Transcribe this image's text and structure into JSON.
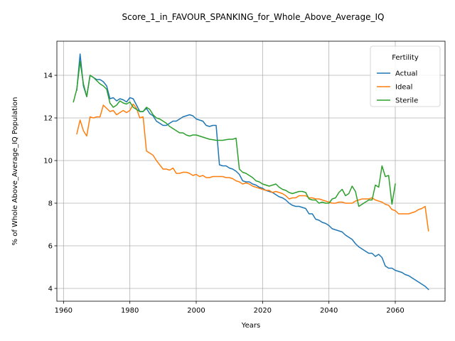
{
  "chart_data": {
    "type": "line",
    "title": "Score_1_in_FAVOUR_SPANKING_for_Whole_Above_Average_IQ",
    "xlabel": "Years",
    "ylabel": "% of Whole Above_Average_IQ Population",
    "xlim": [
      1958,
      2075
    ],
    "ylim": [
      3.4,
      15.6
    ],
    "xticks": [
      1960,
      1980,
      2000,
      2020,
      2040,
      2060
    ],
    "yticks": [
      4,
      6,
      8,
      10,
      12,
      14
    ],
    "grid": true,
    "legend": {
      "title": "Fertility",
      "position": "top-right"
    },
    "series": [
      {
        "name": "Actual",
        "color": "#1f77b4",
        "points": [
          [
            1964,
            13.3
          ],
          [
            1965,
            15.0
          ],
          [
            1966,
            13.5
          ],
          [
            1967,
            13.0
          ],
          [
            1968,
            14.0
          ],
          [
            1969,
            13.9
          ],
          [
            1970,
            13.8
          ],
          [
            1971,
            13.8
          ],
          [
            1972,
            13.7
          ],
          [
            1973,
            13.5
          ],
          [
            1974,
            12.9
          ],
          [
            1975,
            12.95
          ],
          [
            1976,
            12.8
          ],
          [
            1977,
            12.9
          ],
          [
            1978,
            12.85
          ],
          [
            1979,
            12.75
          ],
          [
            1980,
            12.95
          ],
          [
            1981,
            12.9
          ],
          [
            1982,
            12.6
          ],
          [
            1983,
            12.3
          ],
          [
            1984,
            12.3
          ],
          [
            1985,
            12.45
          ],
          [
            1986,
            12.2
          ],
          [
            1987,
            12.1
          ],
          [
            1988,
            11.85
          ],
          [
            1989,
            11.75
          ],
          [
            1990,
            11.65
          ],
          [
            1991,
            11.65
          ],
          [
            1992,
            11.75
          ],
          [
            1993,
            11.85
          ],
          [
            1994,
            11.85
          ],
          [
            1995,
            11.95
          ],
          [
            1996,
            12.05
          ],
          [
            1997,
            12.1
          ],
          [
            1998,
            12.15
          ],
          [
            1999,
            12.1
          ],
          [
            2000,
            11.95
          ],
          [
            2001,
            11.9
          ],
          [
            2002,
            11.85
          ],
          [
            2003,
            11.65
          ],
          [
            2004,
            11.6
          ],
          [
            2005,
            11.65
          ],
          [
            2006,
            11.65
          ],
          [
            2007,
            9.8
          ],
          [
            2008,
            9.75
          ],
          [
            2009,
            9.75
          ],
          [
            2010,
            9.65
          ],
          [
            2011,
            9.6
          ],
          [
            2012,
            9.5
          ],
          [
            2013,
            9.35
          ],
          [
            2014,
            9.05
          ],
          [
            2015,
            9.0
          ],
          [
            2016,
            9.0
          ],
          [
            2017,
            8.9
          ],
          [
            2018,
            8.85
          ],
          [
            2019,
            8.75
          ],
          [
            2020,
            8.7
          ],
          [
            2021,
            8.6
          ],
          [
            2022,
            8.55
          ],
          [
            2023,
            8.5
          ],
          [
            2024,
            8.4
          ],
          [
            2025,
            8.3
          ],
          [
            2026,
            8.25
          ],
          [
            2027,
            8.15
          ],
          [
            2028,
            8.0
          ],
          [
            2029,
            7.9
          ],
          [
            2030,
            7.85
          ],
          [
            2031,
            7.85
          ],
          [
            2032,
            7.8
          ],
          [
            2033,
            7.75
          ],
          [
            2034,
            7.5
          ],
          [
            2035,
            7.5
          ],
          [
            2036,
            7.25
          ],
          [
            2037,
            7.2
          ],
          [
            2038,
            7.1
          ],
          [
            2039,
            7.05
          ],
          [
            2040,
            6.95
          ],
          [
            2041,
            6.8
          ],
          [
            2042,
            6.75
          ],
          [
            2043,
            6.7
          ],
          [
            2044,
            6.65
          ],
          [
            2045,
            6.5
          ],
          [
            2046,
            6.4
          ],
          [
            2047,
            6.3
          ],
          [
            2048,
            6.1
          ],
          [
            2049,
            5.95
          ],
          [
            2050,
            5.85
          ],
          [
            2051,
            5.75
          ],
          [
            2052,
            5.65
          ],
          [
            2053,
            5.65
          ],
          [
            2054,
            5.5
          ],
          [
            2055,
            5.6
          ],
          [
            2056,
            5.45
          ],
          [
            2057,
            5.05
          ],
          [
            2058,
            4.95
          ],
          [
            2059,
            4.95
          ],
          [
            2060,
            4.85
          ],
          [
            2061,
            4.8
          ],
          [
            2062,
            4.75
          ],
          [
            2063,
            4.65
          ],
          [
            2064,
            4.6
          ],
          [
            2065,
            4.5
          ],
          [
            2066,
            4.4
          ],
          [
            2067,
            4.3
          ],
          [
            2068,
            4.2
          ],
          [
            2069,
            4.1
          ],
          [
            2070,
            3.95
          ]
        ]
      },
      {
        "name": "Ideal",
        "color": "#ff7f0e",
        "points": [
          [
            1964,
            11.25
          ],
          [
            1965,
            11.9
          ],
          [
            1966,
            11.4
          ],
          [
            1967,
            11.15
          ],
          [
            1968,
            12.05
          ],
          [
            1969,
            12.0
          ],
          [
            1970,
            12.05
          ],
          [
            1971,
            12.05
          ],
          [
            1972,
            12.6
          ],
          [
            1973,
            12.45
          ],
          [
            1974,
            12.3
          ],
          [
            1975,
            12.35
          ],
          [
            1976,
            12.15
          ],
          [
            1977,
            12.25
          ],
          [
            1978,
            12.35
          ],
          [
            1979,
            12.25
          ],
          [
            1980,
            12.35
          ],
          [
            1981,
            12.65
          ],
          [
            1982,
            12.45
          ],
          [
            1983,
            12.0
          ],
          [
            1984,
            12.05
          ],
          [
            1985,
            10.45
          ],
          [
            1986,
            10.35
          ],
          [
            1987,
            10.25
          ],
          [
            1988,
            10.0
          ],
          [
            1989,
            9.8
          ],
          [
            1990,
            9.6
          ],
          [
            1991,
            9.6
          ],
          [
            1992,
            9.55
          ],
          [
            1993,
            9.65
          ],
          [
            1994,
            9.4
          ],
          [
            1995,
            9.4
          ],
          [
            1996,
            9.45
          ],
          [
            1997,
            9.45
          ],
          [
            1998,
            9.4
          ],
          [
            1999,
            9.3
          ],
          [
            2000,
            9.35
          ],
          [
            2001,
            9.25
          ],
          [
            2002,
            9.3
          ],
          [
            2003,
            9.2
          ],
          [
            2004,
            9.2
          ],
          [
            2005,
            9.25
          ],
          [
            2006,
            9.25
          ],
          [
            2007,
            9.25
          ],
          [
            2008,
            9.25
          ],
          [
            2009,
            9.2
          ],
          [
            2010,
            9.2
          ],
          [
            2011,
            9.15
          ],
          [
            2012,
            9.05
          ],
          [
            2013,
            9.0
          ],
          [
            2014,
            8.9
          ],
          [
            2015,
            8.95
          ],
          [
            2016,
            8.9
          ],
          [
            2017,
            8.8
          ],
          [
            2018,
            8.75
          ],
          [
            2019,
            8.7
          ],
          [
            2020,
            8.65
          ],
          [
            2021,
            8.6
          ],
          [
            2022,
            8.6
          ],
          [
            2023,
            8.5
          ],
          [
            2024,
            8.55
          ],
          [
            2025,
            8.5
          ],
          [
            2026,
            8.45
          ],
          [
            2027,
            8.35
          ],
          [
            2028,
            8.2
          ],
          [
            2029,
            8.25
          ],
          [
            2030,
            8.25
          ],
          [
            2031,
            8.35
          ],
          [
            2032,
            8.35
          ],
          [
            2033,
            8.35
          ],
          [
            2034,
            8.25
          ],
          [
            2035,
            8.25
          ],
          [
            2036,
            8.2
          ],
          [
            2037,
            8.2
          ],
          [
            2038,
            8.15
          ],
          [
            2039,
            8.1
          ],
          [
            2040,
            8.05
          ],
          [
            2041,
            8.0
          ],
          [
            2042,
            8.0
          ],
          [
            2043,
            8.05
          ],
          [
            2044,
            8.05
          ],
          [
            2045,
            8.0
          ],
          [
            2046,
            8.0
          ],
          [
            2047,
            8.0
          ],
          [
            2048,
            8.1
          ],
          [
            2049,
            8.15
          ],
          [
            2050,
            8.2
          ],
          [
            2051,
            8.2
          ],
          [
            2052,
            8.2
          ],
          [
            2053,
            8.25
          ],
          [
            2054,
            8.15
          ],
          [
            2055,
            8.1
          ],
          [
            2056,
            8.05
          ],
          [
            2057,
            7.95
          ],
          [
            2058,
            7.9
          ],
          [
            2059,
            7.7
          ],
          [
            2060,
            7.65
          ],
          [
            2061,
            7.5
          ],
          [
            2062,
            7.5
          ],
          [
            2063,
            7.5
          ],
          [
            2064,
            7.5
          ],
          [
            2065,
            7.55
          ],
          [
            2066,
            7.6
          ],
          [
            2067,
            7.7
          ],
          [
            2068,
            7.75
          ],
          [
            2069,
            7.85
          ],
          [
            2070,
            6.7
          ]
        ]
      },
      {
        "name": "Sterile",
        "color": "#2ca02c",
        "points": [
          [
            1963,
            12.75
          ],
          [
            1964,
            13.35
          ],
          [
            1965,
            14.65
          ],
          [
            1966,
            13.6
          ],
          [
            1967,
            13.0
          ],
          [
            1968,
            14.0
          ],
          [
            1969,
            13.9
          ],
          [
            1970,
            13.75
          ],
          [
            1971,
            13.6
          ],
          [
            1972,
            13.5
          ],
          [
            1973,
            13.35
          ],
          [
            1974,
            12.7
          ],
          [
            1975,
            12.5
          ],
          [
            1976,
            12.6
          ],
          [
            1977,
            12.8
          ],
          [
            1978,
            12.7
          ],
          [
            1979,
            12.65
          ],
          [
            1980,
            12.75
          ],
          [
            1981,
            12.5
          ],
          [
            1982,
            12.4
          ],
          [
            1983,
            12.3
          ],
          [
            1984,
            12.3
          ],
          [
            1985,
            12.5
          ],
          [
            1986,
            12.4
          ],
          [
            1987,
            12.15
          ],
          [
            1988,
            12.0
          ],
          [
            1989,
            11.95
          ],
          [
            1990,
            11.85
          ],
          [
            1991,
            11.75
          ],
          [
            1992,
            11.6
          ],
          [
            1993,
            11.5
          ],
          [
            1994,
            11.4
          ],
          [
            1995,
            11.3
          ],
          [
            1996,
            11.3
          ],
          [
            1997,
            11.2
          ],
          [
            1998,
            11.15
          ],
          [
            1999,
            11.2
          ],
          [
            2000,
            11.2
          ],
          [
            2001,
            11.15
          ],
          [
            2002,
            11.1
          ],
          [
            2003,
            11.05
          ],
          [
            2004,
            11.0
          ],
          [
            2005,
            10.98
          ],
          [
            2006,
            10.95
          ],
          [
            2007,
            10.95
          ],
          [
            2008,
            10.95
          ],
          [
            2009,
            10.98
          ],
          [
            2010,
            11.0
          ],
          [
            2011,
            11.0
          ],
          [
            2012,
            11.05
          ],
          [
            2013,
            9.6
          ],
          [
            2014,
            9.45
          ],
          [
            2015,
            9.4
          ],
          [
            2016,
            9.3
          ],
          [
            2017,
            9.2
          ],
          [
            2018,
            9.05
          ],
          [
            2019,
            9.0
          ],
          [
            2020,
            8.9
          ],
          [
            2021,
            8.85
          ],
          [
            2022,
            8.8
          ],
          [
            2023,
            8.85
          ],
          [
            2024,
            8.9
          ],
          [
            2025,
            8.75
          ],
          [
            2026,
            8.65
          ],
          [
            2027,
            8.6
          ],
          [
            2028,
            8.5
          ],
          [
            2029,
            8.45
          ],
          [
            2030,
            8.5
          ],
          [
            2031,
            8.55
          ],
          [
            2032,
            8.55
          ],
          [
            2033,
            8.5
          ],
          [
            2034,
            8.2
          ],
          [
            2035,
            8.15
          ],
          [
            2036,
            8.15
          ],
          [
            2037,
            8.0
          ],
          [
            2038,
            8.05
          ],
          [
            2039,
            8.0
          ],
          [
            2040,
            8.0
          ],
          [
            2041,
            8.2
          ],
          [
            2042,
            8.25
          ],
          [
            2043,
            8.5
          ],
          [
            2044,
            8.65
          ],
          [
            2045,
            8.35
          ],
          [
            2046,
            8.45
          ],
          [
            2047,
            8.8
          ],
          [
            2048,
            8.55
          ],
          [
            2049,
            7.85
          ],
          [
            2050,
            7.95
          ],
          [
            2051,
            8.05
          ],
          [
            2052,
            8.15
          ],
          [
            2053,
            8.15
          ],
          [
            2054,
            8.85
          ],
          [
            2055,
            8.75
          ],
          [
            2056,
            9.75
          ],
          [
            2057,
            9.25
          ],
          [
            2058,
            9.3
          ],
          [
            2059,
            7.95
          ],
          [
            2060,
            8.9
          ]
        ]
      }
    ]
  }
}
